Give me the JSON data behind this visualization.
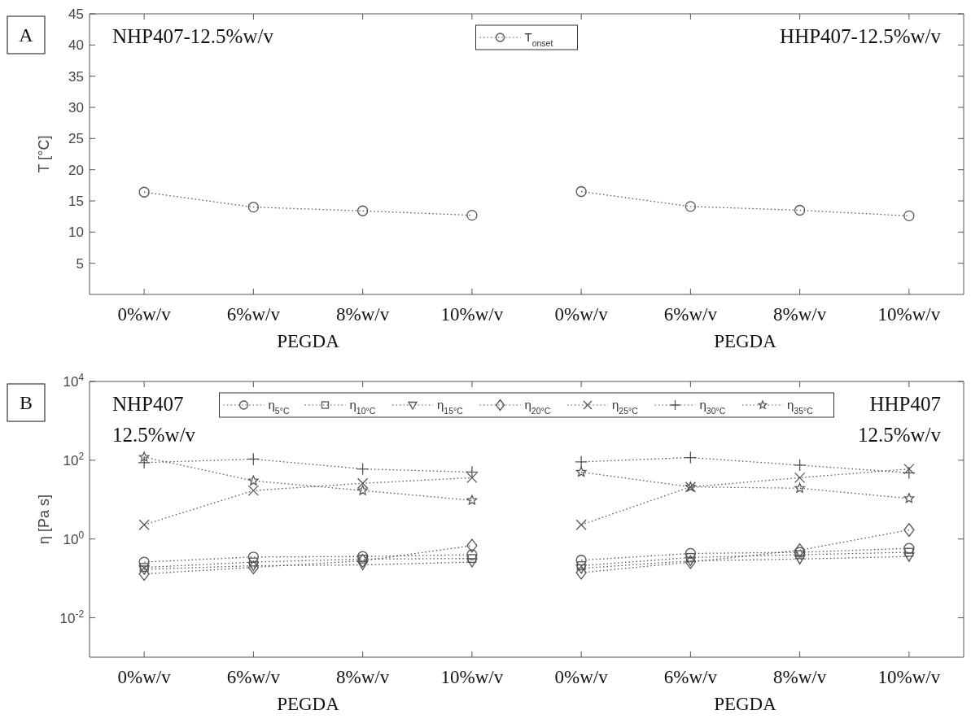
{
  "chart_data": [
    {
      "type": "line",
      "categories": [
        "0%w/v",
        "6%w/v",
        "8%w/v",
        "10%w/v"
      ],
      "xlabel": "PEGDA",
      "ylabel": "T [°C]",
      "ylim": [
        0,
        45
      ],
      "yticks": [
        5,
        10,
        15,
        20,
        25,
        30,
        35,
        40,
        45
      ],
      "legend": "top",
      "line_style": "dotted",
      "marker": "circle",
      "annotations": [
        "A",
        "NHP407-12.5%w/v"
      ],
      "series": [
        {
          "name": "T$_{onset}$",
          "color": "#555555",
          "values": [
            16.4,
            14.0,
            13.4,
            12.7
          ]
        }
      ]
    },
    {
      "type": "line",
      "categories": [
        "0%w/v",
        "6%w/v",
        "8%w/v",
        "10%w/v"
      ],
      "xlabel": "PEGDA",
      "ylim": [
        0,
        45
      ],
      "yticks": [
        5,
        10,
        15,
        20,
        25,
        30,
        35,
        40,
        45
      ],
      "tick_labels": "x",
      "line_style": "dotted",
      "marker": "circle",
      "annotations": [
        "HHP407-12.5%w/v"
      ],
      "series": [
        {
          "color": "#555555",
          "values": [
            16.5,
            14.1,
            13.5,
            12.6
          ]
        }
      ]
    },
    {
      "type": "line",
      "categories": [
        "0%w/v",
        "6%w/v",
        "8%w/v",
        "10%w/v"
      ],
      "xlabel": "PEGDA",
      "ylabel": "η [Pa s]",
      "log": true,
      "ylim": [
        0.001,
        10000
      ],
      "yticks": [
        {
          "value": 0.01,
          "label": "10$^{-2}$"
        },
        {
          "value": 1,
          "label": "10$^{0}$"
        },
        {
          "value": 100,
          "label": "10$^{2}$"
        },
        {
          "value": 10000,
          "label": "10$^{4}$"
        }
      ],
      "legend": "top",
      "line_style": "dotted",
      "annotations": [
        "B",
        "NHP407",
        "12.5%w/v"
      ],
      "series": [
        {
          "name": "η$_{5°C}$",
          "color": "#555555",
          "marker": "circle",
          "values": [
            0.26,
            0.35,
            0.36,
            0.4
          ]
        },
        {
          "name": "η$_{10°C}$",
          "color": "#555555",
          "marker": "square",
          "values": [
            0.19,
            0.26,
            0.31,
            0.32
          ]
        },
        {
          "name": "η$_{15°C}$",
          "color": "#555555",
          "marker": "triangle",
          "values": [
            0.17,
            0.21,
            0.22,
            0.26
          ]
        },
        {
          "name": "η$_{20°C}$",
          "color": "#555555",
          "marker": "diamond",
          "values": [
            0.13,
            0.19,
            0.28,
            0.68
          ]
        },
        {
          "name": "η$_{25°C}$",
          "color": "#555555",
          "marker": "cross",
          "values": [
            2.3,
            17,
            26,
            36
          ]
        },
        {
          "name": "η$_{30°C}$",
          "color": "#555555",
          "marker": "plus",
          "values": [
            87,
            107,
            60,
            50
          ]
        },
        {
          "name": "η$_{35°C}$",
          "color": "#555555",
          "marker": "star",
          "values": [
            120,
            30,
            17,
            9.6
          ]
        }
      ]
    },
    {
      "type": "line",
      "categories": [
        "0%w/v",
        "6%w/v",
        "8%w/v",
        "10%w/v"
      ],
      "xlabel": "PEGDA",
      "log": true,
      "ylim": [
        0.001,
        10000
      ],
      "yticks": [
        0.01,
        1,
        100,
        10000
      ],
      "tick_labels": "x",
      "line_style": "dotted",
      "annotations": [
        "HHP407",
        "12.5%w/v"
      ],
      "series": [
        {
          "color": "#555555",
          "marker": "circle",
          "values": [
            0.29,
            0.43,
            0.46,
            0.58
          ]
        },
        {
          "color": "#555555",
          "marker": "square",
          "values": [
            0.21,
            0.34,
            0.4,
            0.46
          ]
        },
        {
          "color": "#555555",
          "marker": "triangle",
          "values": [
            0.18,
            0.28,
            0.31,
            0.36
          ]
        },
        {
          "color": "#555555",
          "marker": "diamond",
          "values": [
            0.14,
            0.26,
            0.52,
            1.7
          ]
        },
        {
          "color": "#555555",
          "marker": "cross",
          "values": [
            2.3,
            21,
            36,
            60
          ]
        },
        {
          "color": "#555555",
          "marker": "plus",
          "values": [
            91,
            117,
            75,
            48
          ]
        },
        {
          "color": "#555555",
          "marker": "star",
          "values": [
            50,
            21,
            19.5,
            10.7
          ]
        }
      ]
    }
  ]
}
